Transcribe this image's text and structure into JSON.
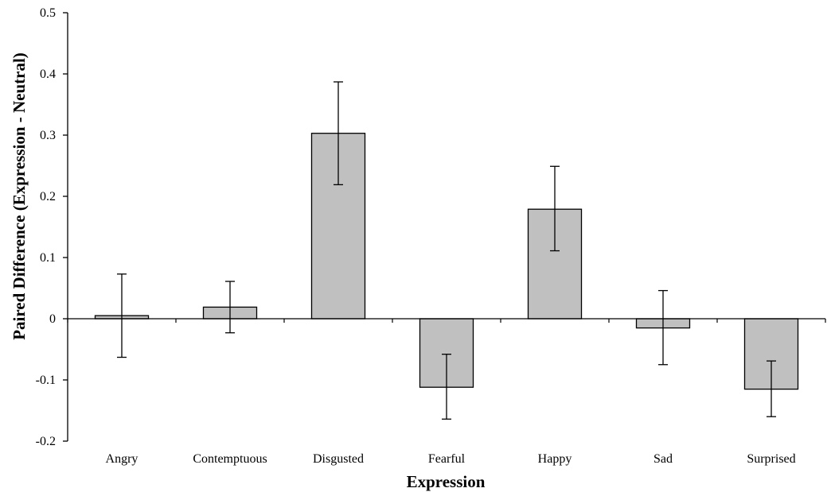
{
  "chart_data": {
    "type": "bar",
    "title": "",
    "xlabel": "Expression",
    "ylabel": "Paired Difference (Expression - Neutral)",
    "categories": [
      "Angry",
      "Contemptuous",
      "Disgusted",
      "Fearful",
      "Happy",
      "Sad",
      "Surprised"
    ],
    "values": [
      0.005,
      0.019,
      0.303,
      -0.112,
      0.179,
      -0.015,
      -0.115
    ],
    "error_bars": [
      {
        "low": -0.063,
        "high": 0.073
      },
      {
        "low": -0.023,
        "high": 0.061
      },
      {
        "low": 0.219,
        "high": 0.387
      },
      {
        "low": -0.164,
        "high": -0.058
      },
      {
        "low": 0.111,
        "high": 0.249
      },
      {
        "low": -0.075,
        "high": 0.046
      },
      {
        "low": -0.16,
        "high": -0.069
      }
    ],
    "ylim": [
      -0.2,
      0.5
    ],
    "yticks": [
      -0.2,
      -0.1,
      0,
      0.1,
      0.2,
      0.3,
      0.4,
      0.5
    ],
    "ytick_labels": [
      "-0.2",
      "-0.1",
      "0",
      "0.1",
      "0.2",
      "0.3",
      "0.4",
      "0.5"
    ],
    "grid": false,
    "legend": "none",
    "colors": {
      "bar_fill": "#c0c0c0",
      "bar_stroke": "#000000"
    }
  }
}
